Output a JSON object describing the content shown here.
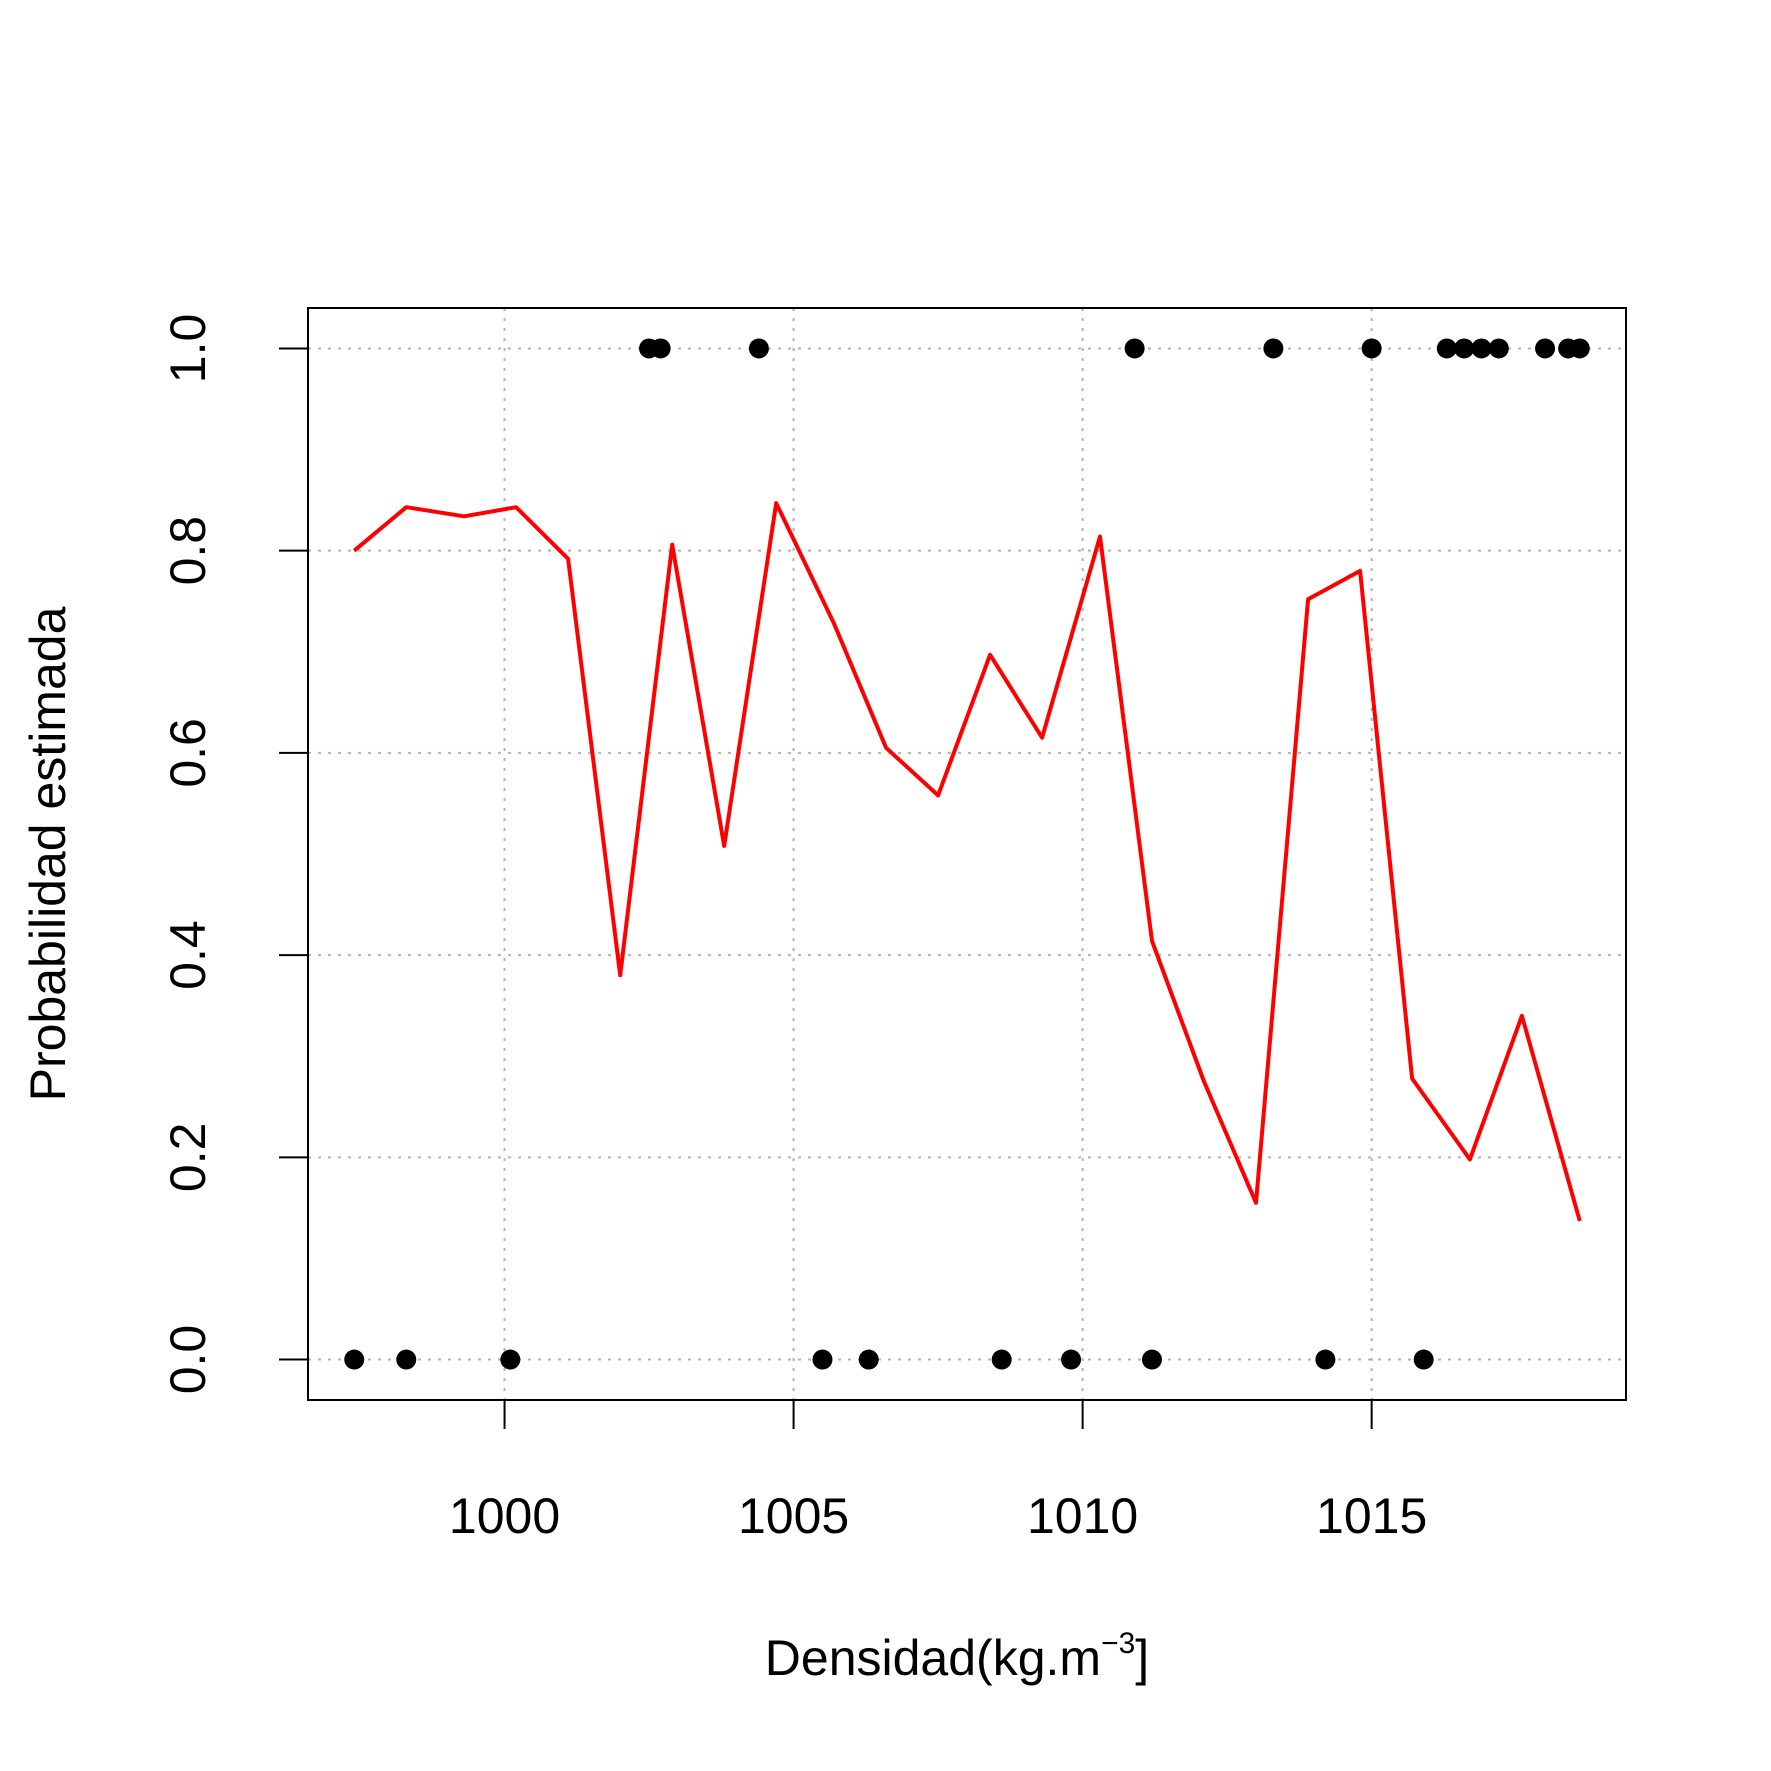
{
  "chart_data": {
    "type": "scatter",
    "xlabel": "Densidad(kg.m",
    "xlabel_superscript": "−3",
    "xlabel_suffix": "]",
    "ylabel": "Probabilidad estimada",
    "xlim": [
      996.6,
      1019.4
    ],
    "ylim": [
      -0.04,
      1.04
    ],
    "x_ticks": [
      1000,
      1005,
      1010,
      1015
    ],
    "y_ticks": [
      0.0,
      0.2,
      0.4,
      0.6,
      0.8,
      1.0
    ],
    "x_tick_labels": [
      "1000",
      "1005",
      "1010",
      "1015"
    ],
    "y_tick_labels": [
      "0.0",
      "0.2",
      "0.4",
      "0.6",
      "0.8",
      "1.0"
    ],
    "grid": true,
    "series": [
      {
        "kind": "points",
        "color": "#000000",
        "points": [
          {
            "x": 997.4,
            "y": 0
          },
          {
            "x": 998.3,
            "y": 0
          },
          {
            "x": 1000.1,
            "y": 0
          },
          {
            "x": 1002.5,
            "y": 1
          },
          {
            "x": 1002.7,
            "y": 1
          },
          {
            "x": 1004.4,
            "y": 1
          },
          {
            "x": 1005.5,
            "y": 0
          },
          {
            "x": 1006.3,
            "y": 0
          },
          {
            "x": 1008.6,
            "y": 0
          },
          {
            "x": 1009.8,
            "y": 0
          },
          {
            "x": 1010.9,
            "y": 1
          },
          {
            "x": 1011.2,
            "y": 0
          },
          {
            "x": 1013.3,
            "y": 1
          },
          {
            "x": 1014.2,
            "y": 0
          },
          {
            "x": 1015.0,
            "y": 1
          },
          {
            "x": 1015.9,
            "y": 0
          },
          {
            "x": 1016.3,
            "y": 1
          },
          {
            "x": 1016.6,
            "y": 1
          },
          {
            "x": 1016.9,
            "y": 1
          },
          {
            "x": 1017.2,
            "y": 1
          },
          {
            "x": 1018.0,
            "y": 1
          },
          {
            "x": 1018.4,
            "y": 1
          },
          {
            "x": 1018.6,
            "y": 1
          }
        ]
      },
      {
        "kind": "line",
        "color": "#ff0000",
        "points": [
          {
            "x": 997.4,
            "y": 0.8
          },
          {
            "x": 998.3,
            "y": 0.843
          },
          {
            "x": 999.3,
            "y": 0.834
          },
          {
            "x": 1000.2,
            "y": 0.843
          },
          {
            "x": 1001.1,
            "y": 0.792
          },
          {
            "x": 1002.0,
            "y": 0.38
          },
          {
            "x": 1002.9,
            "y": 0.806
          },
          {
            "x": 1003.8,
            "y": 0.508
          },
          {
            "x": 1004.7,
            "y": 0.847
          },
          {
            "x": 1005.7,
            "y": 0.728
          },
          {
            "x": 1006.6,
            "y": 0.605
          },
          {
            "x": 1007.5,
            "y": 0.558
          },
          {
            "x": 1008.4,
            "y": 0.697
          },
          {
            "x": 1009.3,
            "y": 0.615
          },
          {
            "x": 1010.3,
            "y": 0.814
          },
          {
            "x": 1011.2,
            "y": 0.414
          },
          {
            "x": 1012.1,
            "y": 0.275
          },
          {
            "x": 1013.0,
            "y": 0.155
          },
          {
            "x": 1013.9,
            "y": 0.752
          },
          {
            "x": 1014.8,
            "y": 0.78
          },
          {
            "x": 1015.7,
            "y": 0.278
          },
          {
            "x": 1016.7,
            "y": 0.198
          },
          {
            "x": 1017.6,
            "y": 0.34
          },
          {
            "x": 1018.6,
            "y": 0.137
          }
        ]
      }
    ]
  }
}
